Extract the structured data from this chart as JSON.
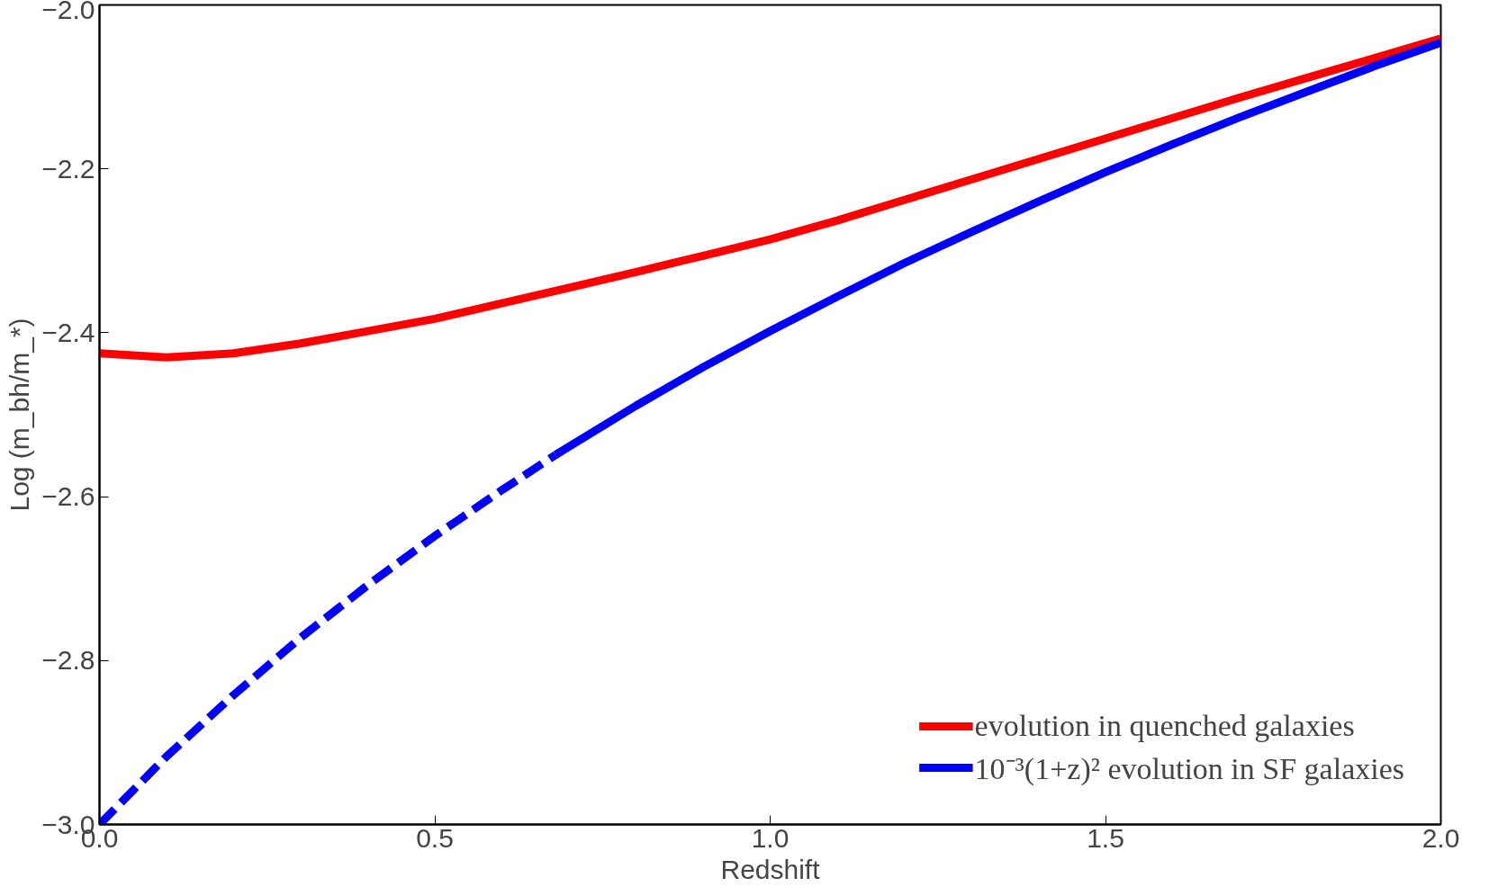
{
  "chart_data": {
    "type": "line",
    "xlabel": "Redshift",
    "ylabel": "Log (m_bh/m_*)",
    "xlim": [
      0,
      2
    ],
    "ylim": [
      -3,
      -2
    ],
    "xticks": [
      {
        "value": 0,
        "label": "0.0"
      },
      {
        "value": 0.5,
        "label": "0.5"
      },
      {
        "value": 1,
        "label": "1.0"
      },
      {
        "value": 1.5,
        "label": "1.5"
      },
      {
        "value": 2,
        "label": "2.0"
      }
    ],
    "yticks": [
      {
        "value": -3,
        "label": "−3.0"
      },
      {
        "value": -2.8,
        "label": "−2.8"
      },
      {
        "value": -2.6,
        "label": "−2.6"
      },
      {
        "value": -2.4,
        "label": "−2.4"
      },
      {
        "value": -2.2,
        "label": "−2.2"
      },
      {
        "value": -2,
        "label": "−2.0"
      }
    ],
    "grid": false,
    "legend": "bottom right",
    "marker": "none",
    "series": [
      {
        "name": "evolution in quenched galaxies",
        "color": "#ff0000",
        "line_style": "solid",
        "x": [
          0,
          0.1,
          0.2,
          0.3,
          0.4,
          0.5,
          0.6,
          0.7,
          0.8,
          0.9,
          1.0,
          1.1,
          1.2,
          1.3,
          1.4,
          1.5,
          1.6,
          1.7,
          1.8,
          1.9,
          2.0
        ],
        "values": [
          -2.425,
          -2.43,
          -2.425,
          -2.413,
          -2.398,
          -2.383,
          -2.364,
          -2.345,
          -2.326,
          -2.306,
          -2.286,
          -2.263,
          -2.238,
          -2.213,
          -2.188,
          -2.163,
          -2.138,
          -2.113,
          -2.089,
          -2.065,
          -2.041
        ]
      },
      {
        "name": "10⁻³(1+z)² evolution in SF galaxies",
        "color": "#0000ff",
        "line_style": "solid",
        "x": [
          0.68,
          0.8,
          0.9,
          1.0,
          1.1,
          1.2,
          1.3,
          1.4,
          1.5,
          1.6,
          1.7,
          1.8,
          1.9,
          2.0
        ],
        "values": [
          -2.549,
          -2.489,
          -2.442,
          -2.398,
          -2.356,
          -2.315,
          -2.277,
          -2.24,
          -2.204,
          -2.17,
          -2.137,
          -2.106,
          -2.075,
          -2.046
        ]
      },
      {
        "color": "#0000ff",
        "line_style": "dashed",
        "x": [
          0,
          0.1,
          0.2,
          0.3,
          0.4,
          0.5,
          0.6,
          0.68
        ],
        "values": [
          -3,
          -2.917,
          -2.842,
          -2.772,
          -2.708,
          -2.648,
          -2.592,
          -2.549
        ]
      }
    ]
  }
}
